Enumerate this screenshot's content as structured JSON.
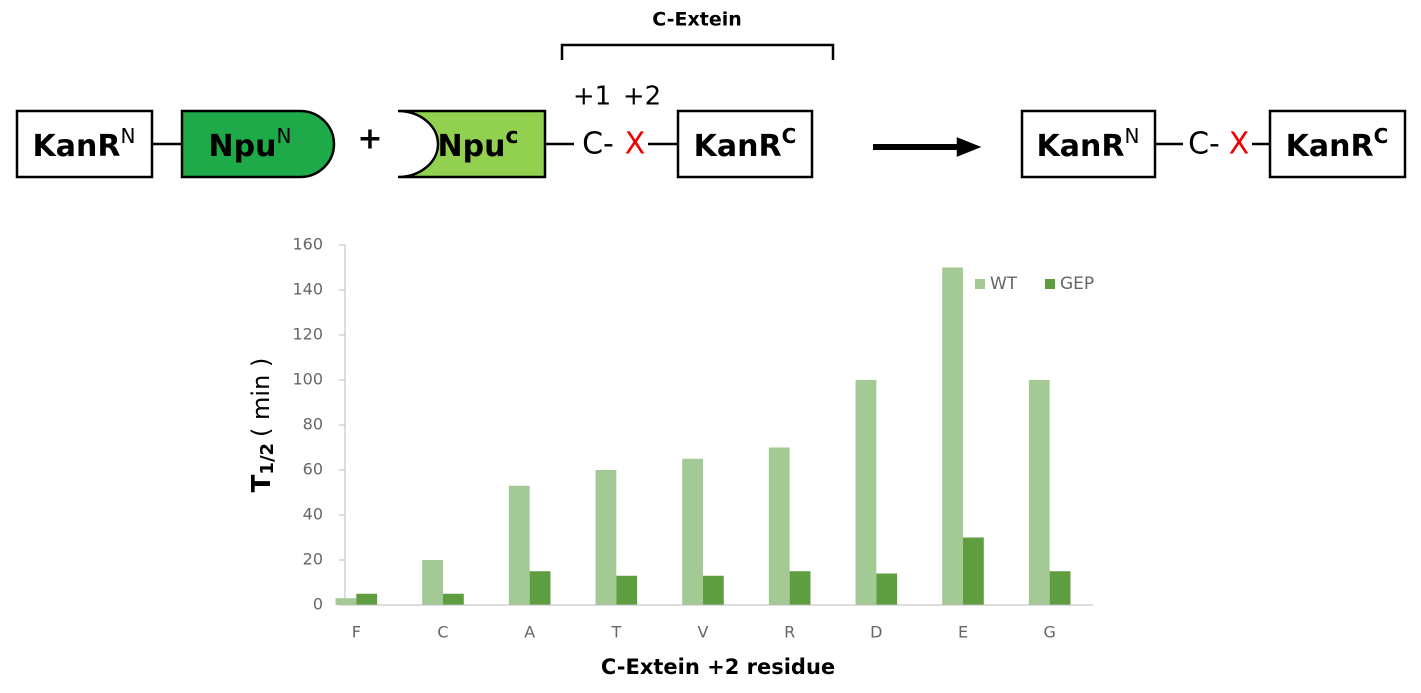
{
  "diagram": {
    "bracket_label": "C-Extein",
    "positions": [
      "+1",
      "+2"
    ],
    "left": {
      "kanr_n": {
        "label": "KanR",
        "sup": "N"
      },
      "npu_n": {
        "label": "Npu",
        "sup": "N"
      },
      "plus": "+",
      "npu_c": {
        "label": "Npu",
        "sup": "c"
      },
      "cys": "C-",
      "x": "X",
      "kanr_c": {
        "label": "KanR",
        "sup": "C"
      }
    },
    "right": {
      "kanr_n": {
        "label": "KanR",
        "sup": "N"
      },
      "cys": "C-",
      "x": "X",
      "kanr_c": {
        "label": "KanR",
        "sup": "C"
      }
    }
  },
  "chart_data": {
    "type": "bar",
    "x_label": "C-Extein +2 residue",
    "y_label": {
      "main": "T",
      "sub": "1/2",
      "unit": "( min )"
    },
    "categories": [
      "F",
      "C",
      "A",
      "T",
      "V",
      "R",
      "D",
      "E",
      "G"
    ],
    "series": [
      {
        "name": "WT",
        "color": "#a3c994",
        "values": [
          3,
          20,
          53,
          60,
          65,
          70,
          100,
          150,
          100
        ]
      },
      {
        "name": "GEP",
        "color": "#5e9e40",
        "values": [
          5,
          5,
          15,
          13,
          13,
          15,
          14,
          30,
          15
        ]
      }
    ],
    "ylim": [
      0,
      160
    ],
    "yticks": [
      0,
      20,
      40,
      60,
      80,
      100,
      120,
      140,
      160
    ],
    "grid": false,
    "legend": "top-right"
  }
}
